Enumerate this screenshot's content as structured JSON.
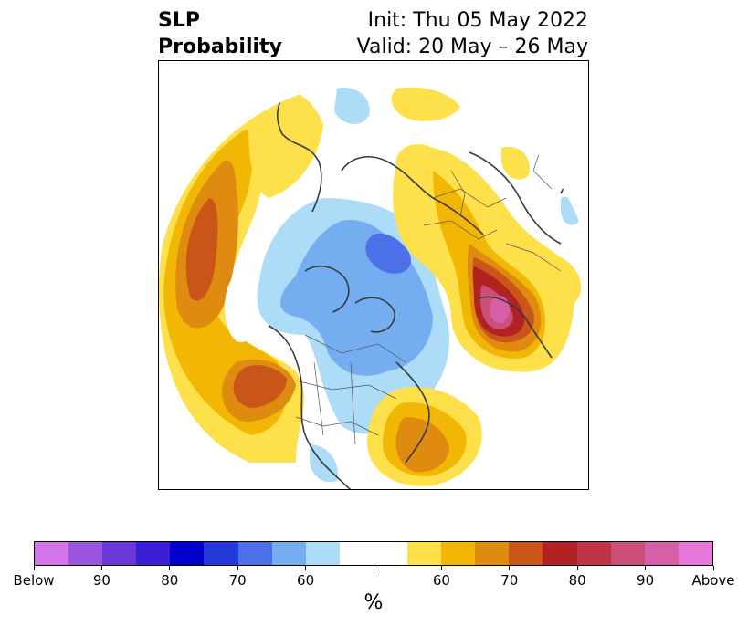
{
  "title": {
    "left_line1": "SLP",
    "left_line2": "Probability",
    "right_line1": "Init: Thu 05 May 2022",
    "right_line2": "Valid: 20 May – 26 May"
  },
  "colorbar": {
    "colors": [
      "#d275e8",
      "#9b55e0",
      "#6c38d8",
      "#3a1fd6",
      "#0000cc",
      "#2238d8",
      "#4c70e8",
      "#75aef0",
      "#addcf8",
      "#ffffff",
      "#ffffff",
      "#fde04a",
      "#f2b705",
      "#df8b10",
      "#c95518",
      "#b22222",
      "#c03448",
      "#cc4f78",
      "#d75fa8",
      "#e477d8"
    ],
    "labels": [
      "Below",
      "90",
      "80",
      "70",
      "60",
      "",
      "60",
      "70",
      "80",
      "90",
      "Above"
    ],
    "unit": "%"
  },
  "map_colors": {
    "coast": "#3a3a3a",
    "border": "#555555"
  }
}
